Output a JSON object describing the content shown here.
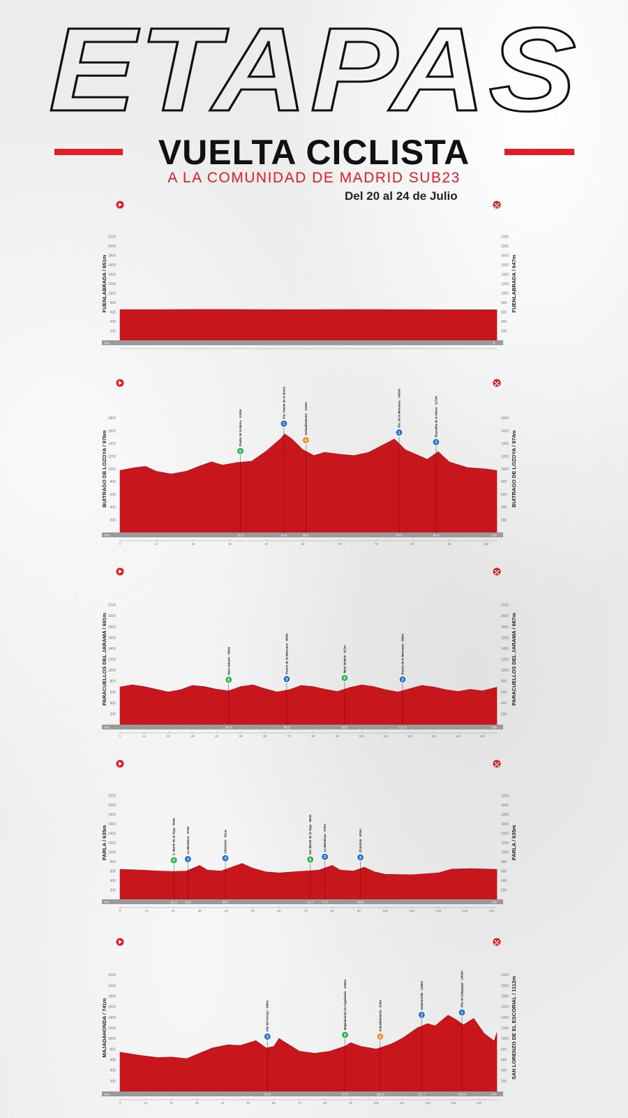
{
  "title": "ETAPAS",
  "event_name": "VUELTA CICLISTA",
  "event_subtitle": "A LA COMUNIDAD DE MADRID SUB23",
  "dates": "Del 20 al 24 de Julio",
  "colors": {
    "red": "#e21d24",
    "dark": "#111111",
    "bar": "#9a9a9a",
    "kom": "#2a6fd4",
    "sprint": "#2bb34a",
    "bonus": "#f08a24"
  },
  "chart_data": [
    {
      "type": "area",
      "start_label": "FUENLABRADA / 651m",
      "finish_label": "FUENLABRADA / 647m",
      "xlabel": "Km",
      "ylim": [
        0,
        2400
      ],
      "y_ticks": [
        200,
        400,
        600,
        800,
        1000,
        1200,
        1400,
        1600,
        1800,
        2000,
        2200
      ],
      "x_ticks": [],
      "distance": 8,
      "end_km_label": "8",
      "profile": [
        [
          0,
          651
        ],
        [
          1,
          652
        ],
        [
          2,
          655
        ],
        [
          3,
          652
        ],
        [
          4,
          650
        ],
        [
          5,
          653
        ],
        [
          6,
          650
        ],
        [
          7,
          648
        ],
        [
          8,
          647
        ]
      ],
      "points": []
    },
    {
      "type": "area",
      "start_label": "BUITRAGO DE LOZOYA / 976m",
      "finish_label": "BUITRAGO DE LOZOYA / 974m",
      "xlabel": "Km",
      "ylim": [
        0,
        2000
      ],
      "y_ticks": [
        200,
        400,
        600,
        800,
        1000,
        1200,
        1400,
        1600,
        1800
      ],
      "x_ticks": [
        0,
        10,
        20,
        30,
        40,
        50,
        60,
        70,
        80,
        90,
        100
      ],
      "distance": 103,
      "end_km_label": "103",
      "profile": [
        [
          0,
          976
        ],
        [
          4,
          1020
        ],
        [
          7,
          1040
        ],
        [
          10,
          960
        ],
        [
          14,
          920
        ],
        [
          18,
          960
        ],
        [
          22,
          1050
        ],
        [
          25,
          1110
        ],
        [
          28,
          1060
        ],
        [
          32,
          1100
        ],
        [
          36,
          1120
        ],
        [
          40,
          1280
        ],
        [
          44,
          1480
        ],
        [
          45,
          1550
        ],
        [
          47,
          1470
        ],
        [
          50,
          1300
        ],
        [
          53,
          1210
        ],
        [
          56,
          1260
        ],
        [
          60,
          1230
        ],
        [
          64,
          1210
        ],
        [
          68,
          1260
        ],
        [
          72,
          1380
        ],
        [
          75,
          1470
        ],
        [
          78,
          1300
        ],
        [
          82,
          1200
        ],
        [
          84,
          1150
        ],
        [
          87,
          1270
        ],
        [
          90,
          1110
        ],
        [
          95,
          1020
        ],
        [
          100,
          1000
        ],
        [
          103,
          974
        ]
      ],
      "points": [
        {
          "km": 32.9,
          "km_label": "32.9",
          "label": "Paular de la Sierra · 1110m",
          "kind": "sprint",
          "mark": "S"
        },
        {
          "km": 44.8,
          "km_label": "44.8",
          "label": "Pto. Paular de la Sierra",
          "kind": "kom",
          "mark": "1"
        },
        {
          "km": 50.8,
          "km_label": "50.8",
          "label": "Avituallamiento · 1140m",
          "kind": "bonus",
          "mark": "A"
        },
        {
          "km": 76.3,
          "km_label": "76.3",
          "label": "Pto. de la Morcuera · 1400m",
          "kind": "kom",
          "mark": "1"
        },
        {
          "km": 86.4,
          "km_label": "86.4",
          "label": "Rascafría de la Sierra · 1170m",
          "kind": "kom",
          "mark": "3"
        }
      ]
    },
    {
      "type": "area",
      "start_label": "PARACUELLOS DEL JARAMA / 691m",
      "finish_label": "PARACUELLOS DEL JARAMA / 687m",
      "xlabel": "Km",
      "ylim": [
        0,
        2400
      ],
      "y_ticks": [
        200,
        400,
        600,
        800,
        1000,
        1200,
        1400,
        1600,
        1800,
        2000,
        2200
      ],
      "x_ticks": [
        0,
        10,
        20,
        30,
        40,
        50,
        60,
        70,
        80,
        90,
        100,
        110,
        120,
        130,
        140,
        150
      ],
      "distance": 156,
      "end_km_label": "156",
      "profile": [
        [
          0,
          691
        ],
        [
          5,
          730
        ],
        [
          10,
          700
        ],
        [
          15,
          650
        ],
        [
          20,
          600
        ],
        [
          25,
          640
        ],
        [
          30,
          720
        ],
        [
          35,
          700
        ],
        [
          40,
          650
        ],
        [
          45,
          620
        ],
        [
          50,
          700
        ],
        [
          55,
          730
        ],
        [
          60,
          660
        ],
        [
          65,
          600
        ],
        [
          70,
          640
        ],
        [
          75,
          720
        ],
        [
          80,
          700
        ],
        [
          85,
          650
        ],
        [
          90,
          610
        ],
        [
          95,
          680
        ],
        [
          100,
          730
        ],
        [
          105,
          700
        ],
        [
          110,
          640
        ],
        [
          115,
          600
        ],
        [
          120,
          660
        ],
        [
          125,
          720
        ],
        [
          130,
          690
        ],
        [
          135,
          640
        ],
        [
          140,
          610
        ],
        [
          145,
          650
        ],
        [
          150,
          620
        ],
        [
          156,
          687
        ]
      ],
      "points": [
        {
          "km": 45.0,
          "km_label": "45.0",
          "label": "Meta Volante · 694m",
          "kind": "sprint",
          "mark": "S"
        },
        {
          "km": 69.0,
          "km_label": "69.0",
          "label": "Puerto de la Morcuera · 850m",
          "kind": "kom",
          "mark": "3"
        },
        {
          "km": 93.0,
          "km_label": "93.0",
          "label": "Meta Volante · 621m",
          "kind": "sprint",
          "mark": "S"
        },
        {
          "km": 117.0,
          "km_label": "117.0",
          "label": "Puerto de la Morcuera · 850m",
          "kind": "kom",
          "mark": "3"
        }
      ]
    },
    {
      "type": "area",
      "start_label": "PARLA / 635m",
      "finish_label": "PARLA / 635m",
      "xlabel": "Km",
      "ylim": [
        0,
        2400
      ],
      "y_ticks": [
        200,
        400,
        600,
        800,
        1000,
        1200,
        1400,
        1600,
        1800,
        2000,
        2200
      ],
      "x_ticks": [
        0,
        10,
        20,
        30,
        40,
        50,
        60,
        70,
        80,
        90,
        100,
        110,
        120,
        130,
        140
      ],
      "distance": 142,
      "end_km_label": "142",
      "profile": [
        [
          0,
          635
        ],
        [
          8,
          620
        ],
        [
          15,
          600
        ],
        [
          20,
          590
        ],
        [
          25,
          600
        ],
        [
          30,
          720
        ],
        [
          33,
          620
        ],
        [
          38,
          600
        ],
        [
          42,
          680
        ],
        [
          46,
          760
        ],
        [
          50,
          660
        ],
        [
          55,
          580
        ],
        [
          60,
          560
        ],
        [
          65,
          580
        ],
        [
          70,
          600
        ],
        [
          75,
          620
        ],
        [
          80,
          720
        ],
        [
          83,
          620
        ],
        [
          88,
          600
        ],
        [
          92,
          680
        ],
        [
          96,
          580
        ],
        [
          100,
          530
        ],
        [
          110,
          520
        ],
        [
          120,
          560
        ],
        [
          125,
          640
        ],
        [
          132,
          650
        ],
        [
          142,
          635
        ]
      ],
      "points": [
        {
          "km": 20.3,
          "km_label": "20.3",
          "label": "S. Martín de la Vega · 564m",
          "kind": "sprint",
          "mark": "S"
        },
        {
          "km": 25.6,
          "km_label": "25.6",
          "label": "La Marañosa · 570m",
          "kind": "kom",
          "mark": "3"
        },
        {
          "km": 39.7,
          "km_label": "39.7",
          "label": "Chinchón · 631m",
          "kind": "kom",
          "mark": "3"
        },
        {
          "km": 71.7,
          "km_label": "71.7",
          "label": "San Martín de la Vega · 564m",
          "kind": "sprint",
          "mark": "S"
        },
        {
          "km": 77.2,
          "km_label": "77.2",
          "label": "La Marañosa · 570m",
          "kind": "kom",
          "mark": "3"
        },
        {
          "km": 90.6,
          "km_label": "90.6",
          "label": "Chinchón · 631m",
          "kind": "kom",
          "mark": "3"
        }
      ]
    },
    {
      "type": "area",
      "start_label": "MAJADAHONDA / 741m",
      "finish_label": "SAN LORENZO DE EL ESCORIAL / 1112m",
      "xlabel": "Km",
      "ylim": [
        0,
        2400
      ],
      "y_ticks": [
        200,
        400,
        600,
        800,
        1000,
        1200,
        1400,
        1600,
        1800,
        2000,
        2200
      ],
      "x_ticks": [
        0,
        10,
        20,
        30,
        40,
        50,
        60,
        70,
        80,
        90,
        100,
        110,
        120,
        130,
        140
      ],
      "distance": 147,
      "end_km_label": "147",
      "profile": [
        [
          0,
          741
        ],
        [
          8,
          680
        ],
        [
          15,
          640
        ],
        [
          20,
          650
        ],
        [
          26,
          620
        ],
        [
          30,
          700
        ],
        [
          36,
          820
        ],
        [
          42,
          880
        ],
        [
          47,
          870
        ],
        [
          53,
          960
        ],
        [
          57,
          820
        ],
        [
          60,
          850
        ],
        [
          62,
          1000
        ],
        [
          66,
          880
        ],
        [
          70,
          760
        ],
        [
          76,
          720
        ],
        [
          82,
          760
        ],
        [
          88,
          860
        ],
        [
          90,
          920
        ],
        [
          94,
          850
        ],
        [
          100,
          800
        ],
        [
          106,
          900
        ],
        [
          110,
          1000
        ],
        [
          116,
          1200
        ],
        [
          120,
          1280
        ],
        [
          123,
          1240
        ],
        [
          128,
          1440
        ],
        [
          131,
          1360
        ],
        [
          134,
          1260
        ],
        [
          138,
          1380
        ],
        [
          142,
          1100
        ],
        [
          146,
          950
        ],
        [
          147,
          1112
        ]
      ],
      "points": [
        {
          "km": 57.5,
          "km_label": "57.5",
          "label": "Alto del Arroyo · 940m",
          "kind": "kom",
          "mark": "3"
        },
        {
          "km": 87.8,
          "km_label": "87.8",
          "label": "Majadahonda de Ciguiñuela · 1000m",
          "kind": "sprint",
          "mark": "S"
        },
        {
          "km": 101.5,
          "km_label": "101.5",
          "label": "Avituallamiento · 914m",
          "kind": "bonus",
          "mark": "A"
        },
        {
          "km": 117.7,
          "km_label": "117.7",
          "label": "Valdemorillo · 1180m",
          "kind": "kom",
          "mark": "2"
        },
        {
          "km": 133.4,
          "km_label": "133.4",
          "label": "Alto de Galapagar · 1400m",
          "kind": "kom",
          "mark": "1"
        }
      ]
    }
  ]
}
